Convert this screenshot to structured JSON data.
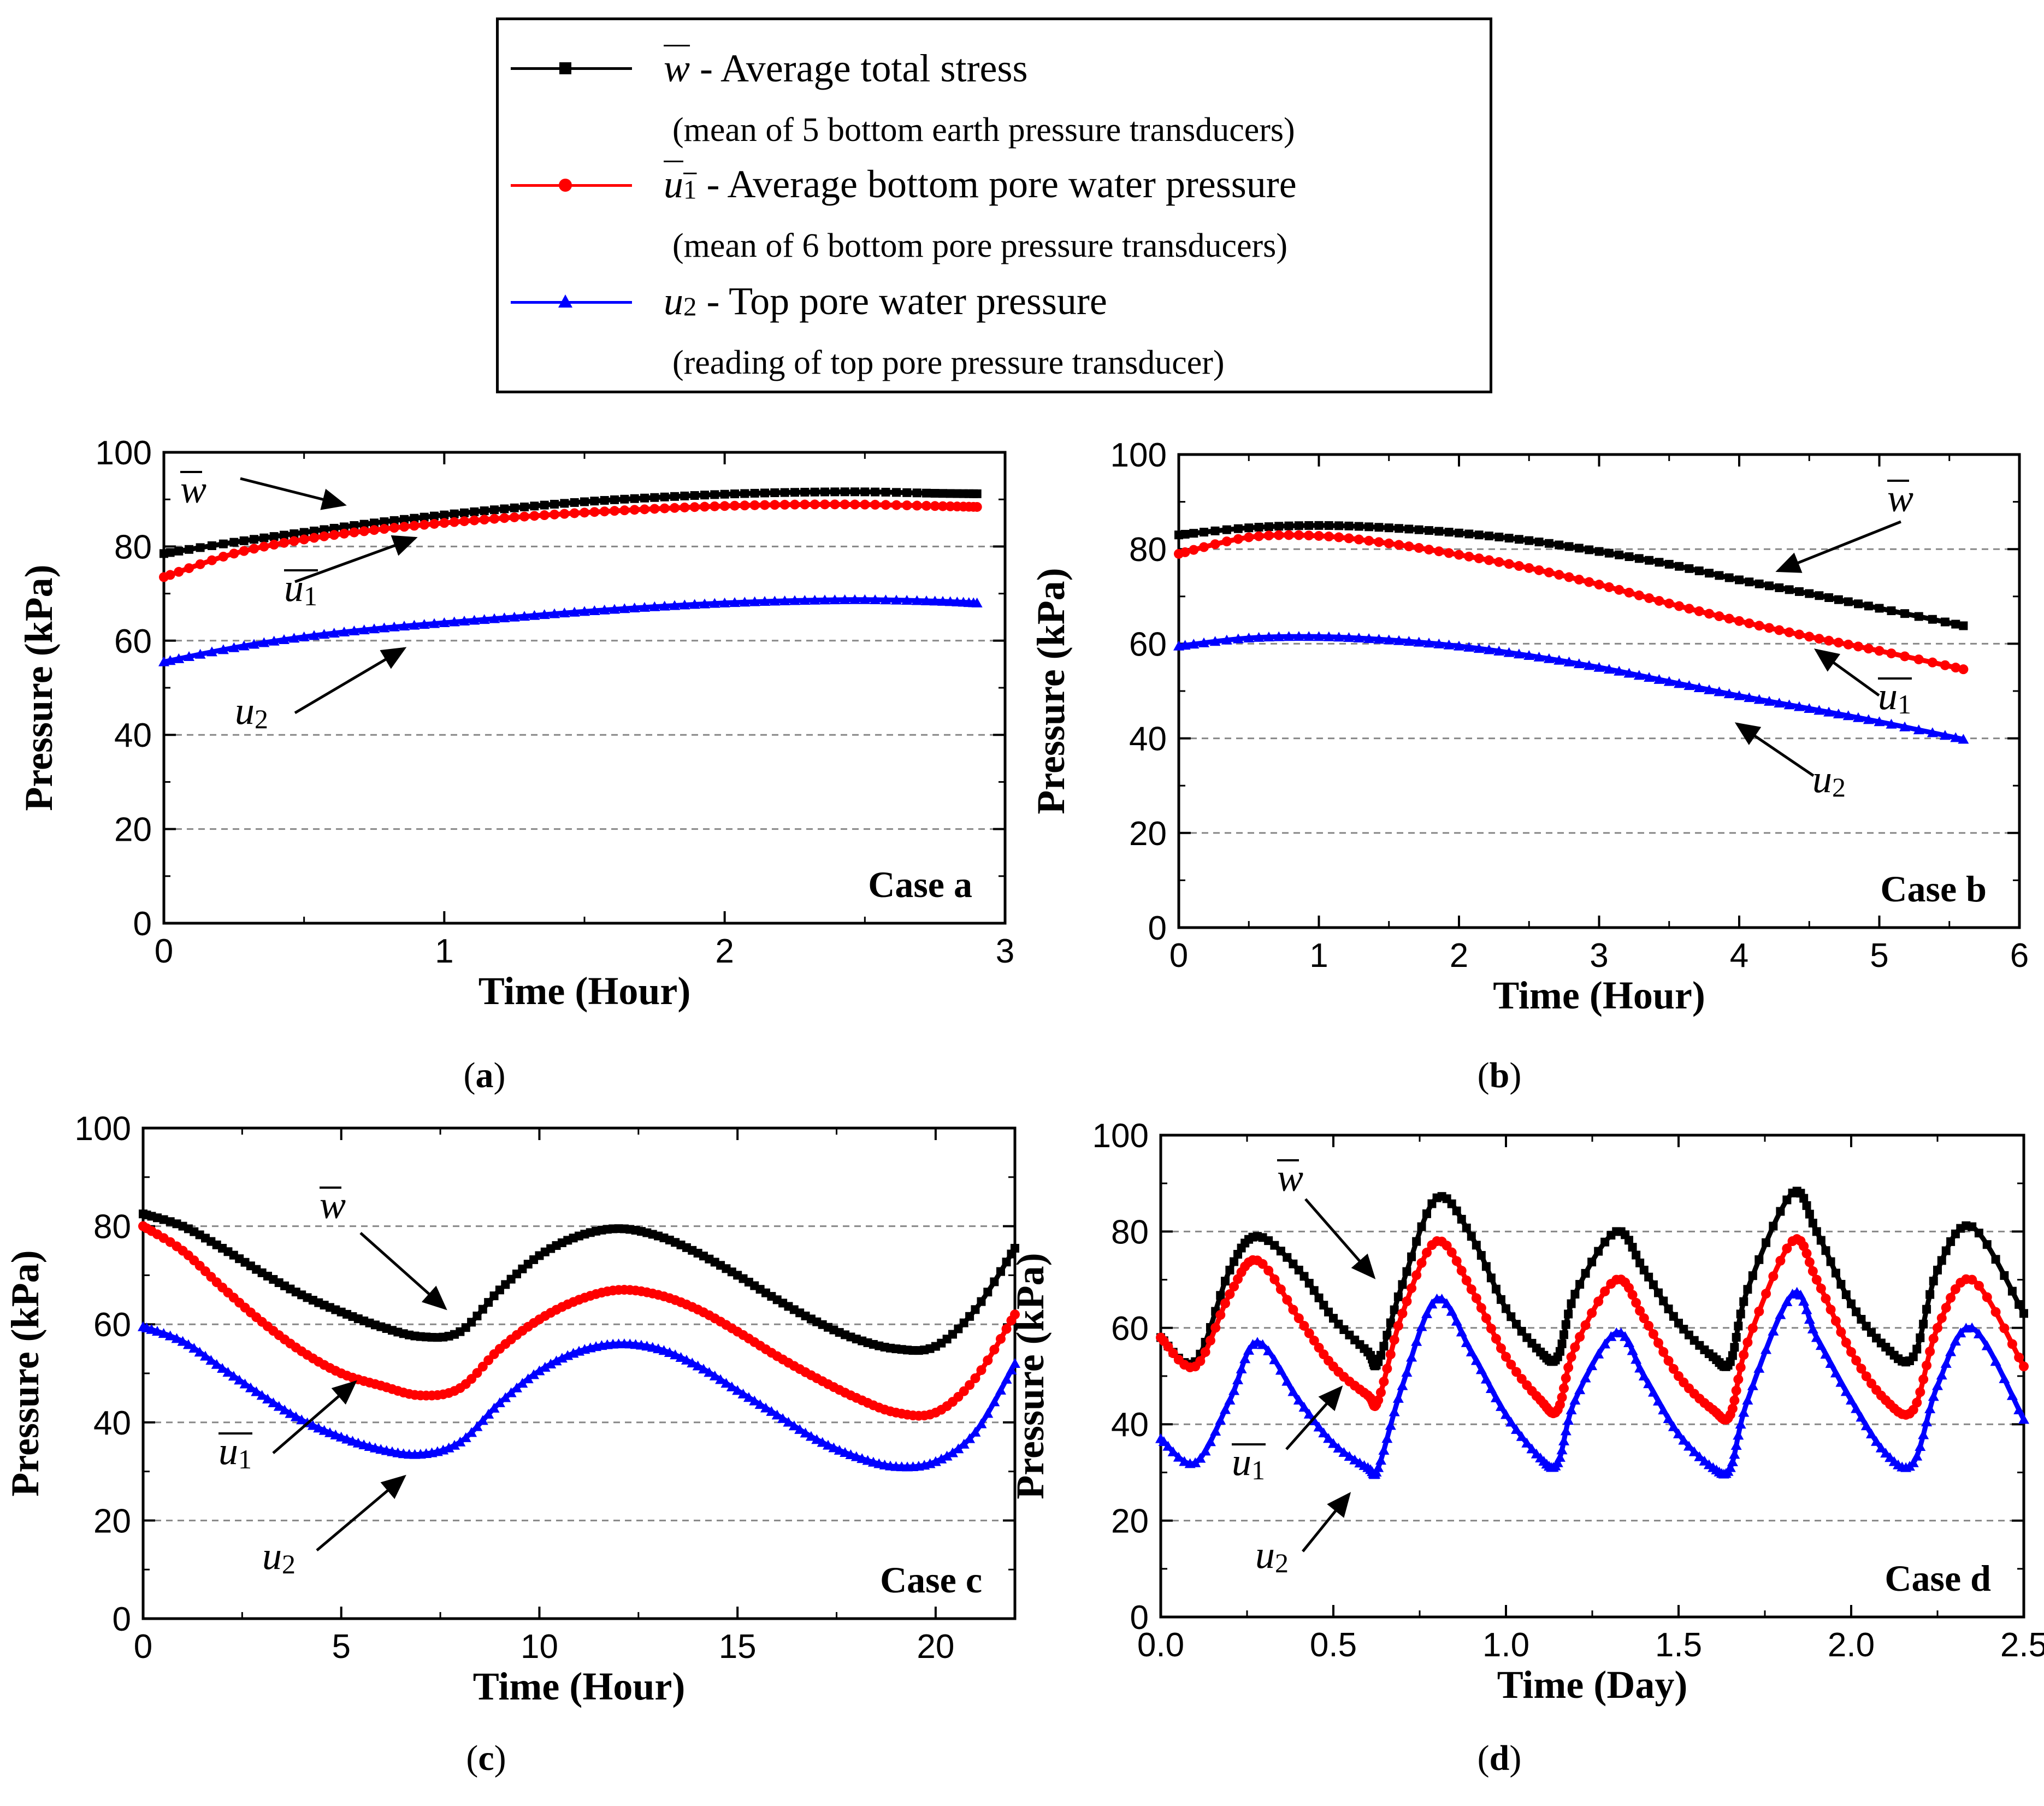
{
  "legend": {
    "w": {
      "symbol": "w",
      "text": "- Average total stress",
      "note": "(mean of 5 bottom earth pressure transducers)",
      "color": "#000000",
      "marker": "square"
    },
    "u1": {
      "symbol": "u",
      "sub": "1",
      "text": "- Average bottom pore water pressure",
      "note": "(mean of 6 bottom pore pressure transducers)",
      "color": "#ff0000",
      "marker": "circle"
    },
    "u2": {
      "symbol": "u",
      "sub": "2",
      "text": "- Top pore water pressure",
      "note": "(reading of top pore pressure transducer)",
      "color": "#0000ff",
      "marker": "triangle"
    }
  },
  "chart_data": [
    {
      "panel_label": "(a)",
      "case_label": "Case a",
      "type": "line",
      "xlabel": "Time (Hour)",
      "ylabel": "Pressure (kPa)",
      "xlim": [
        0,
        3
      ],
      "ylim": [
        0,
        100
      ],
      "xticks": [
        "0",
        "1",
        "2",
        "3"
      ],
      "yticks": [
        "0",
        "20",
        "40",
        "60",
        "80",
        "100"
      ],
      "grid": "horizontal dashed at 20, 40, 60, 80",
      "x": [
        0,
        0.25,
        0.5,
        0.75,
        1.0,
        1.25,
        1.5,
        1.75,
        2.0,
        2.25,
        2.5,
        2.75,
        2.9
      ],
      "series": [
        {
          "name": "w",
          "values": [
            78.5,
            80.9,
            83.0,
            85.0,
            86.7,
            88.2,
            89.5,
            90.4,
            91.1,
            91.5,
            91.6,
            91.3,
            91.2
          ]
        },
        {
          "name": "u1",
          "values": [
            73.5,
            78.5,
            81.5,
            83.5,
            85.0,
            86.2,
            87.2,
            88.0,
            88.6,
            88.9,
            88.9,
            88.6,
            88.4
          ]
        },
        {
          "name": "u2",
          "values": [
            55.5,
            58.5,
            60.8,
            62.5,
            63.8,
            65.0,
            66.2,
            67.2,
            68.0,
            68.5,
            68.7,
            68.4,
            68.0
          ]
        }
      ],
      "annotations": [
        {
          "label": "w",
          "sub": "",
          "overline": true,
          "series": "w"
        },
        {
          "label": "u",
          "sub": "1",
          "overline": true,
          "series": "u1"
        },
        {
          "label": "u",
          "sub": "2",
          "overline": false,
          "series": "u2"
        }
      ]
    },
    {
      "panel_label": "(b)",
      "case_label": "Case b",
      "type": "line",
      "xlabel": "Time (Hour)",
      "ylabel": "Pressure (kPa)",
      "xlim": [
        0,
        6
      ],
      "ylim": [
        0,
        100
      ],
      "xticks": [
        "0",
        "1",
        "2",
        "3",
        "4",
        "5",
        "6"
      ],
      "yticks": [
        "0",
        "20",
        "40",
        "60",
        "80",
        "100"
      ],
      "grid": "horizontal dashed at 20, 40, 60, 80",
      "x": [
        0,
        0.5,
        1.0,
        1.5,
        2.0,
        2.5,
        3.0,
        3.5,
        4.0,
        4.5,
        5.0,
        5.6
      ],
      "series": [
        {
          "name": "w",
          "values": [
            83.0,
            84.5,
            85.0,
            84.5,
            83.4,
            81.8,
            79.5,
            76.8,
            73.5,
            70.6,
            67.5,
            63.8
          ]
        },
        {
          "name": "u1",
          "values": [
            79.0,
            82.5,
            82.8,
            81.2,
            78.8,
            76.0,
            72.5,
            68.5,
            64.8,
            61.5,
            58.5,
            54.6
          ]
        },
        {
          "name": "u2",
          "values": [
            59.5,
            61.2,
            61.5,
            60.8,
            59.5,
            57.5,
            55.0,
            52.0,
            49.0,
            46.3,
            43.5,
            39.8
          ]
        }
      ],
      "annotations": [
        {
          "label": "w",
          "sub": "",
          "overline": true,
          "series": "w"
        },
        {
          "label": "u",
          "sub": "1",
          "overline": true,
          "series": "u1"
        },
        {
          "label": "u",
          "sub": "2",
          "overline": false,
          "series": "u2"
        }
      ]
    },
    {
      "panel_label": "(c)",
      "case_label": "Case c",
      "type": "line",
      "xlabel": "Time (Hour)",
      "ylabel": "Pressure (kPa)",
      "xlim": [
        0,
        22
      ],
      "ylim": [
        0,
        100
      ],
      "xticks": [
        "0",
        "5",
        "10",
        "15",
        "20"
      ],
      "yticks": [
        "0",
        "20",
        "40",
        "60",
        "80",
        "100"
      ],
      "grid": "horizontal dashed at 20, 40, 60, 80",
      "x": [
        0,
        1,
        2,
        3,
        4,
        5,
        6,
        7,
        8,
        9,
        10,
        11,
        12,
        13,
        14,
        15,
        16,
        17,
        18,
        19,
        20,
        21,
        22
      ],
      "series": [
        {
          "name": "w",
          "values": [
            82.5,
            80.0,
            75.5,
            70.5,
            66.0,
            62.5,
            59.5,
            57.5,
            58.5,
            67.0,
            74.0,
            78.0,
            79.5,
            78.0,
            74.5,
            70.0,
            65.0,
            60.5,
            57.0,
            55.0,
            55.5,
            63.0,
            75.5
          ]
        },
        {
          "name": "u1",
          "values": [
            80.0,
            75.0,
            67.5,
            60.5,
            54.5,
            50.0,
            47.5,
            45.5,
            47.0,
            55.0,
            61.0,
            65.0,
            67.0,
            66.0,
            63.0,
            58.5,
            53.5,
            49.0,
            45.0,
            42.0,
            42.0,
            49.0,
            62.0
          ]
        },
        {
          "name": "u2",
          "values": [
            59.5,
            56.5,
            51.0,
            45.5,
            40.5,
            37.0,
            34.5,
            33.5,
            36.0,
            44.0,
            50.5,
            54.5,
            56.0,
            55.0,
            51.5,
            46.5,
            41.5,
            36.5,
            33.0,
            31.0,
            32.0,
            38.0,
            52.0
          ]
        }
      ],
      "annotations": [
        {
          "label": "w",
          "sub": "",
          "overline": true,
          "series": "w"
        },
        {
          "label": "u",
          "sub": "1",
          "overline": true,
          "series": "u1"
        },
        {
          "label": "u",
          "sub": "2",
          "overline": false,
          "series": "u2"
        }
      ]
    },
    {
      "panel_label": "(d)",
      "case_label": "Case d",
      "type": "line",
      "xlabel": "Time (Day)",
      "ylabel": "Pressure (kPa)",
      "xlim": [
        0,
        2.5
      ],
      "ylim": [
        0,
        100
      ],
      "xticks": [
        "0.0",
        "0.5",
        "1.0",
        "1.5",
        "2.0",
        "2.5"
      ],
      "yticks": [
        "0",
        "20",
        "40",
        "60",
        "80",
        "100"
      ],
      "grid": "horizontal dashed at 20, 40, 60, 80",
      "x": [
        0.0,
        0.1,
        0.2,
        0.28,
        0.4,
        0.5,
        0.6,
        0.63,
        0.7,
        0.8,
        0.9,
        1.0,
        1.1,
        1.15,
        1.2,
        1.32,
        1.4,
        1.5,
        1.6,
        1.65,
        1.7,
        1.83,
        1.9,
        2.0,
        2.1,
        2.18,
        2.25,
        2.35,
        2.5
      ],
      "series": [
        {
          "name": "w",
          "values": [
            58,
            53,
            72,
            79,
            72,
            62,
            55,
            53,
            69,
            87,
            79,
            64,
            55,
            54,
            67,
            80,
            72,
            61,
            54,
            53,
            68,
            88,
            80,
            65,
            56,
            54,
            72,
            81,
            63
          ]
        },
        {
          "name": "u1",
          "values": [
            58,
            52,
            67,
            74,
            62,
            52,
            46,
            45,
            63,
            78,
            68,
            54,
            45,
            43,
            56,
            70,
            62,
            50,
            43,
            42,
            57,
            78,
            70,
            55,
            45,
            43,
            60,
            70,
            52
          ]
        },
        {
          "name": "u2",
          "values": [
            37,
            32,
            45,
            57,
            45,
            36,
            31,
            31,
            48,
            66,
            55,
            42,
            33,
            32,
            45,
            59,
            50,
            38,
            31,
            31,
            45,
            67,
            58,
            45,
            34,
            32,
            48,
            60,
            41
          ]
        }
      ],
      "annotations": [
        {
          "label": "w",
          "sub": "",
          "overline": true,
          "series": "w"
        },
        {
          "label": "u",
          "sub": "1",
          "overline": true,
          "series": "u1"
        },
        {
          "label": "u",
          "sub": "2",
          "overline": false,
          "series": "u2"
        }
      ]
    }
  ]
}
